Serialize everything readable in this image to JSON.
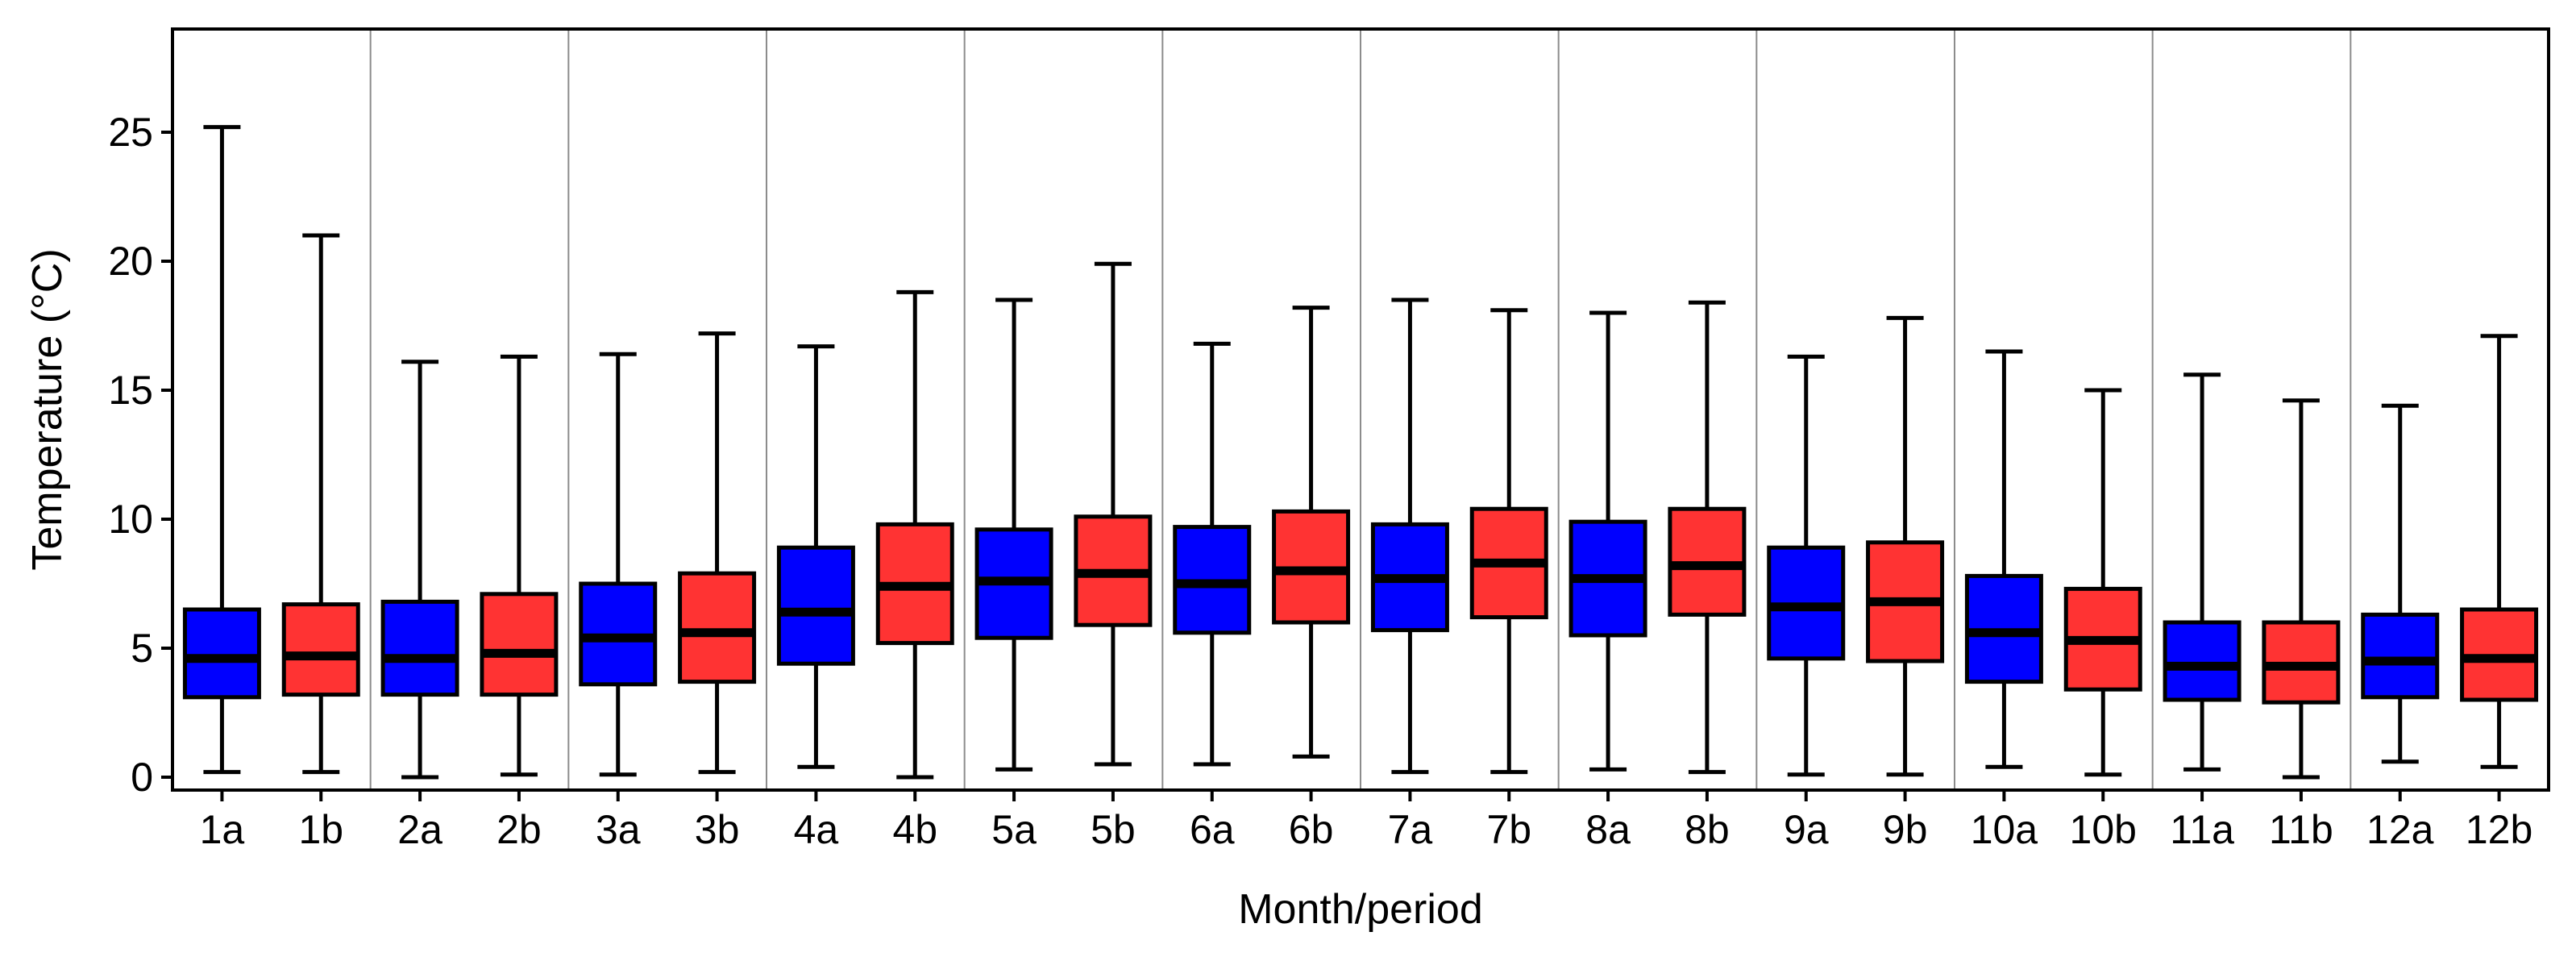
{
  "chart_data": {
    "type": "boxplot",
    "title": "",
    "xlabel": "Month/period",
    "ylabel": "Temperature (°C)",
    "ylim": [
      -0.5,
      29
    ],
    "yticks": [
      0,
      5,
      10,
      15,
      20,
      25
    ],
    "grid": false,
    "group_separators": true,
    "colors": {
      "a": "#0000FF",
      "b": "#FF3333",
      "outline": "#000000",
      "separator": "#8C8C8C"
    },
    "categories": [
      "1a",
      "1b",
      "2a",
      "2b",
      "3a",
      "3b",
      "4a",
      "4b",
      "5a",
      "5b",
      "6a",
      "6b",
      "7a",
      "7b",
      "8a",
      "8b",
      "9a",
      "9b",
      "10a",
      "10b",
      "11a",
      "11b",
      "12a",
      "12b"
    ],
    "boxes": [
      {
        "label": "1a",
        "series": "a",
        "min": 0.2,
        "q1": 3.1,
        "median": 4.6,
        "q3": 6.5,
        "max": 25.2
      },
      {
        "label": "1b",
        "series": "b",
        "min": 0.2,
        "q1": 3.2,
        "median": 4.7,
        "q3": 6.7,
        "max": 21.0
      },
      {
        "label": "2a",
        "series": "a",
        "min": 0.0,
        "q1": 3.2,
        "median": 4.6,
        "q3": 6.8,
        "max": 16.1
      },
      {
        "label": "2b",
        "series": "b",
        "min": 0.1,
        "q1": 3.2,
        "median": 4.8,
        "q3": 7.1,
        "max": 16.3
      },
      {
        "label": "3a",
        "series": "a",
        "min": 0.1,
        "q1": 3.6,
        "median": 5.4,
        "q3": 7.5,
        "max": 16.4
      },
      {
        "label": "3b",
        "series": "b",
        "min": 0.2,
        "q1": 3.7,
        "median": 5.6,
        "q3": 7.9,
        "max": 17.2
      },
      {
        "label": "4a",
        "series": "a",
        "min": 0.4,
        "q1": 4.4,
        "median": 6.4,
        "q3": 8.9,
        "max": 16.7
      },
      {
        "label": "4b",
        "series": "b",
        "min": 0.0,
        "q1": 5.2,
        "median": 7.4,
        "q3": 9.8,
        "max": 18.8
      },
      {
        "label": "5a",
        "series": "a",
        "min": 0.3,
        "q1": 5.4,
        "median": 7.6,
        "q3": 9.6,
        "max": 18.5
      },
      {
        "label": "5b",
        "series": "b",
        "min": 0.5,
        "q1": 5.9,
        "median": 7.9,
        "q3": 10.1,
        "max": 19.9
      },
      {
        "label": "6a",
        "series": "a",
        "min": 0.5,
        "q1": 5.6,
        "median": 7.5,
        "q3": 9.7,
        "max": 16.8
      },
      {
        "label": "6b",
        "series": "b",
        "min": 0.8,
        "q1": 6.0,
        "median": 8.0,
        "q3": 10.3,
        "max": 18.2
      },
      {
        "label": "7a",
        "series": "a",
        "min": 0.2,
        "q1": 5.7,
        "median": 7.7,
        "q3": 9.8,
        "max": 18.5
      },
      {
        "label": "7b",
        "series": "b",
        "min": 0.2,
        "q1": 6.2,
        "median": 8.3,
        "q3": 10.4,
        "max": 18.1
      },
      {
        "label": "8a",
        "series": "a",
        "min": 0.3,
        "q1": 5.5,
        "median": 7.7,
        "q3": 9.9,
        "max": 18.0
      },
      {
        "label": "8b",
        "series": "b",
        "min": 0.2,
        "q1": 6.3,
        "median": 8.2,
        "q3": 10.4,
        "max": 18.4
      },
      {
        "label": "9a",
        "series": "a",
        "min": 0.1,
        "q1": 4.6,
        "median": 6.6,
        "q3": 8.9,
        "max": 16.3
      },
      {
        "label": "9b",
        "series": "b",
        "min": 0.1,
        "q1": 4.5,
        "median": 6.8,
        "q3": 9.1,
        "max": 17.8
      },
      {
        "label": "10a",
        "series": "a",
        "min": 0.4,
        "q1": 3.7,
        "median": 5.6,
        "q3": 7.8,
        "max": 16.5
      },
      {
        "label": "10b",
        "series": "b",
        "min": 0.1,
        "q1": 3.4,
        "median": 5.3,
        "q3": 7.3,
        "max": 15.0
      },
      {
        "label": "11a",
        "series": "a",
        "min": 0.3,
        "q1": 3.0,
        "median": 4.3,
        "q3": 6.0,
        "max": 15.6
      },
      {
        "label": "11b",
        "series": "b",
        "min": 0.0,
        "q1": 2.9,
        "median": 4.3,
        "q3": 6.0,
        "max": 14.6
      },
      {
        "label": "12a",
        "series": "a",
        "min": 0.6,
        "q1": 3.1,
        "median": 4.5,
        "q3": 6.3,
        "max": 14.4
      },
      {
        "label": "12b",
        "series": "b",
        "min": 0.4,
        "q1": 3.0,
        "median": 4.6,
        "q3": 6.5,
        "max": 17.1
      }
    ]
  }
}
